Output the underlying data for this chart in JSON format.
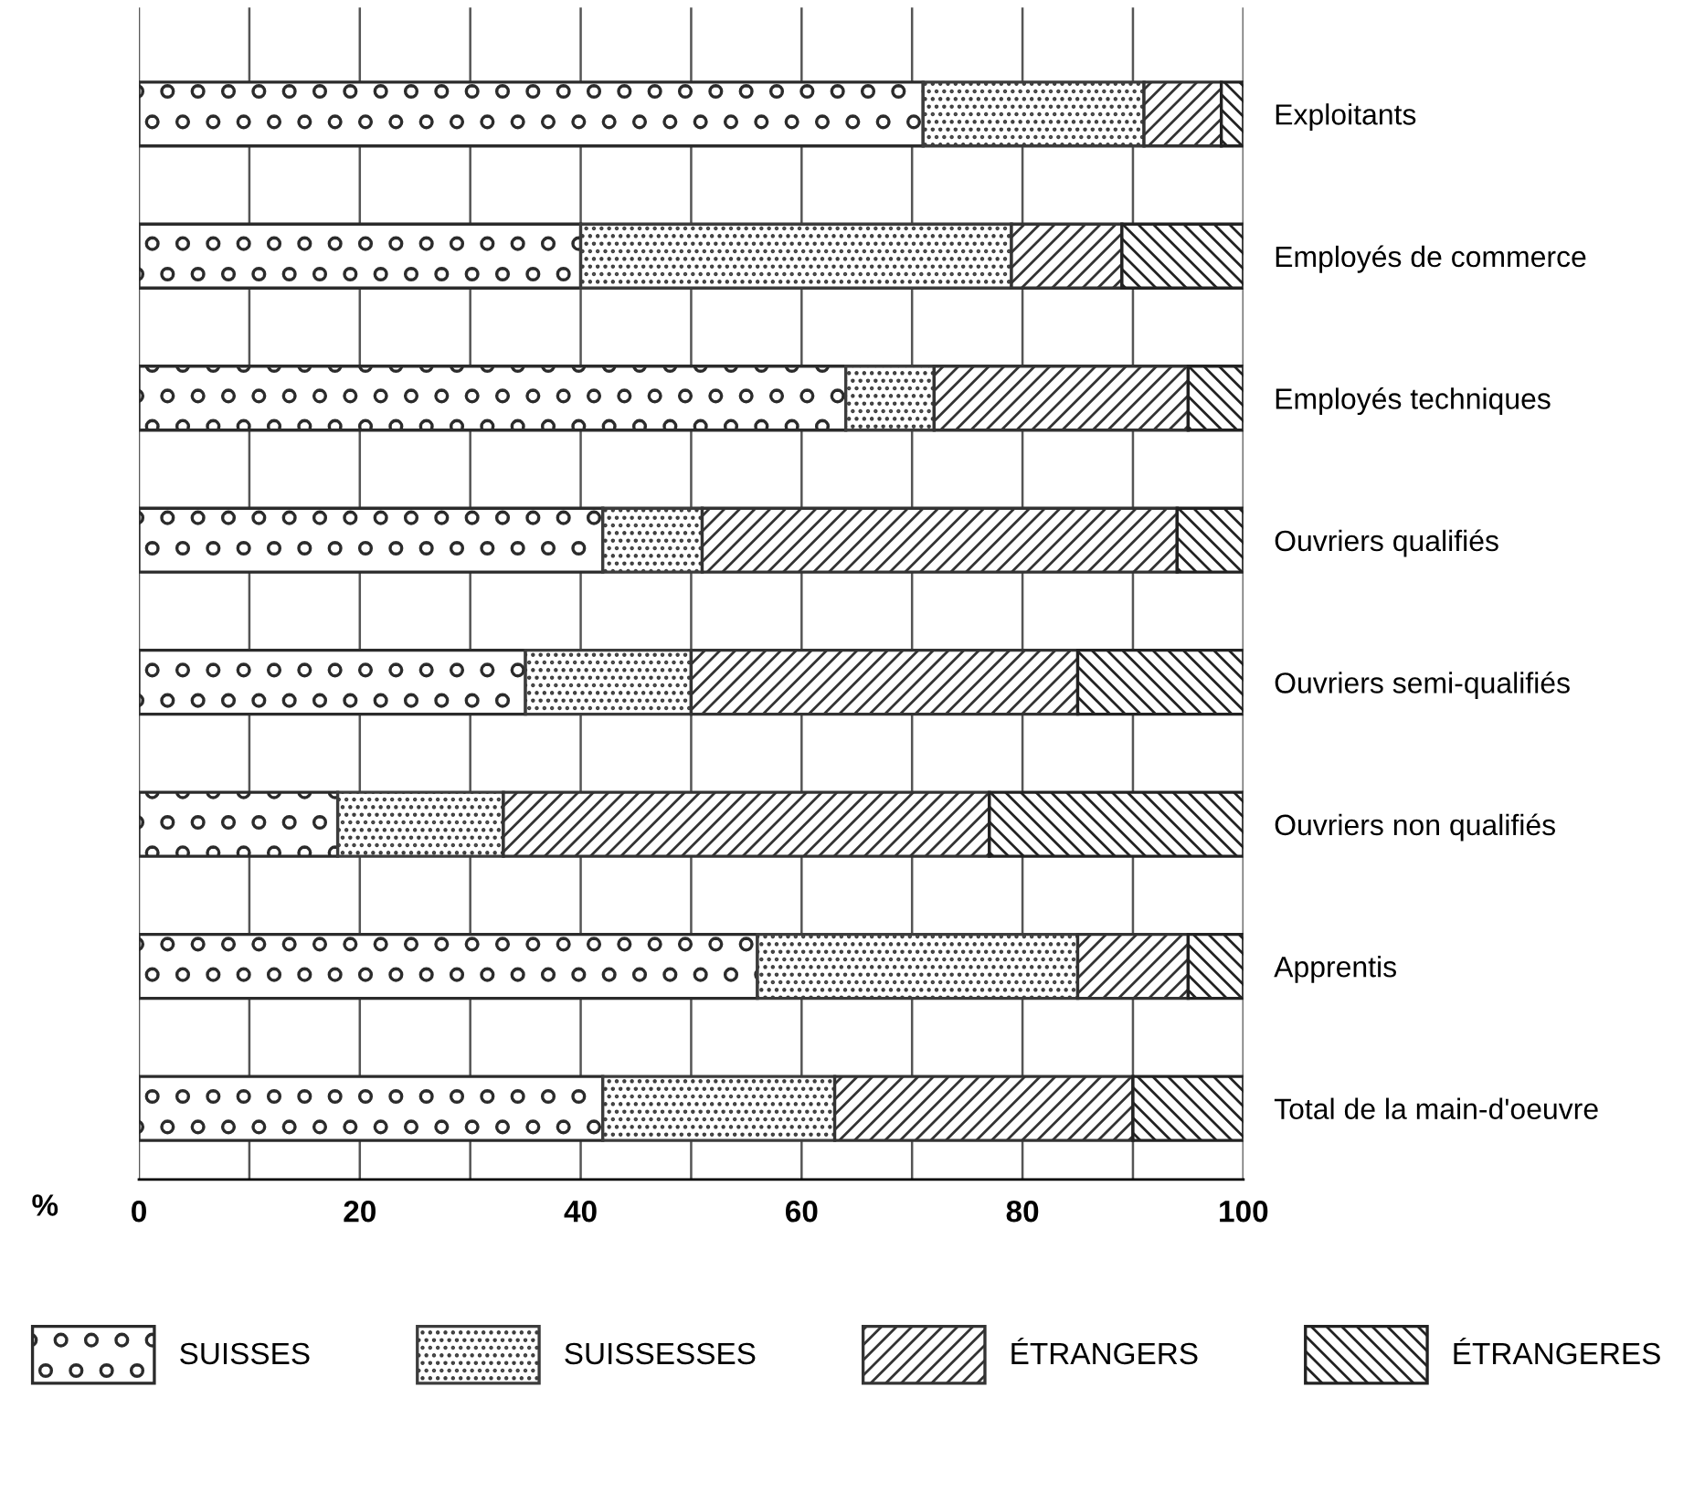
{
  "chart_data": {
    "type": "bar",
    "orientation": "horizontal",
    "stacked": true,
    "xlabel": "%",
    "categories": [
      "Exploitants",
      "Employés de commerce",
      "Employés techniques",
      "Ouvriers qualifiés",
      "Ouvriers semi-qualifiés",
      "Ouvriers non qualifiés",
      "Apprentis",
      "Total de la main-d'oeuvre"
    ],
    "series": [
      {
        "name": "SUISSES",
        "color": "#2b2b2b",
        "values": [
          71,
          40,
          64,
          42,
          35,
          18,
          56,
          42
        ]
      },
      {
        "name": "SUISSESSES",
        "color": "#3c3c3c",
        "values": [
          20,
          39,
          8,
          9,
          15,
          15,
          29,
          21
        ]
      },
      {
        "name": "ÉTRANGERS",
        "color": "#333333",
        "values": [
          7,
          10,
          23,
          43,
          35,
          44,
          10,
          27
        ]
      },
      {
        "name": "ÉTRANGERES",
        "color": "#222222",
        "values": [
          2,
          11,
          5,
          6,
          15,
          23,
          5,
          10
        ]
      }
    ],
    "xlim": [
      0,
      100
    ],
    "xticks": [
      0,
      {
        "value": 10,
        "label": null
      },
      20,
      {
        "value": 30,
        "label": null
      },
      40,
      {
        "value": 50,
        "label": null
      },
      60,
      {
        "value": 70,
        "label": null
      },
      80,
      {
        "value": 90,
        "label": null
      },
      100
    ],
    "grid": "x",
    "legend": "bottom"
  }
}
